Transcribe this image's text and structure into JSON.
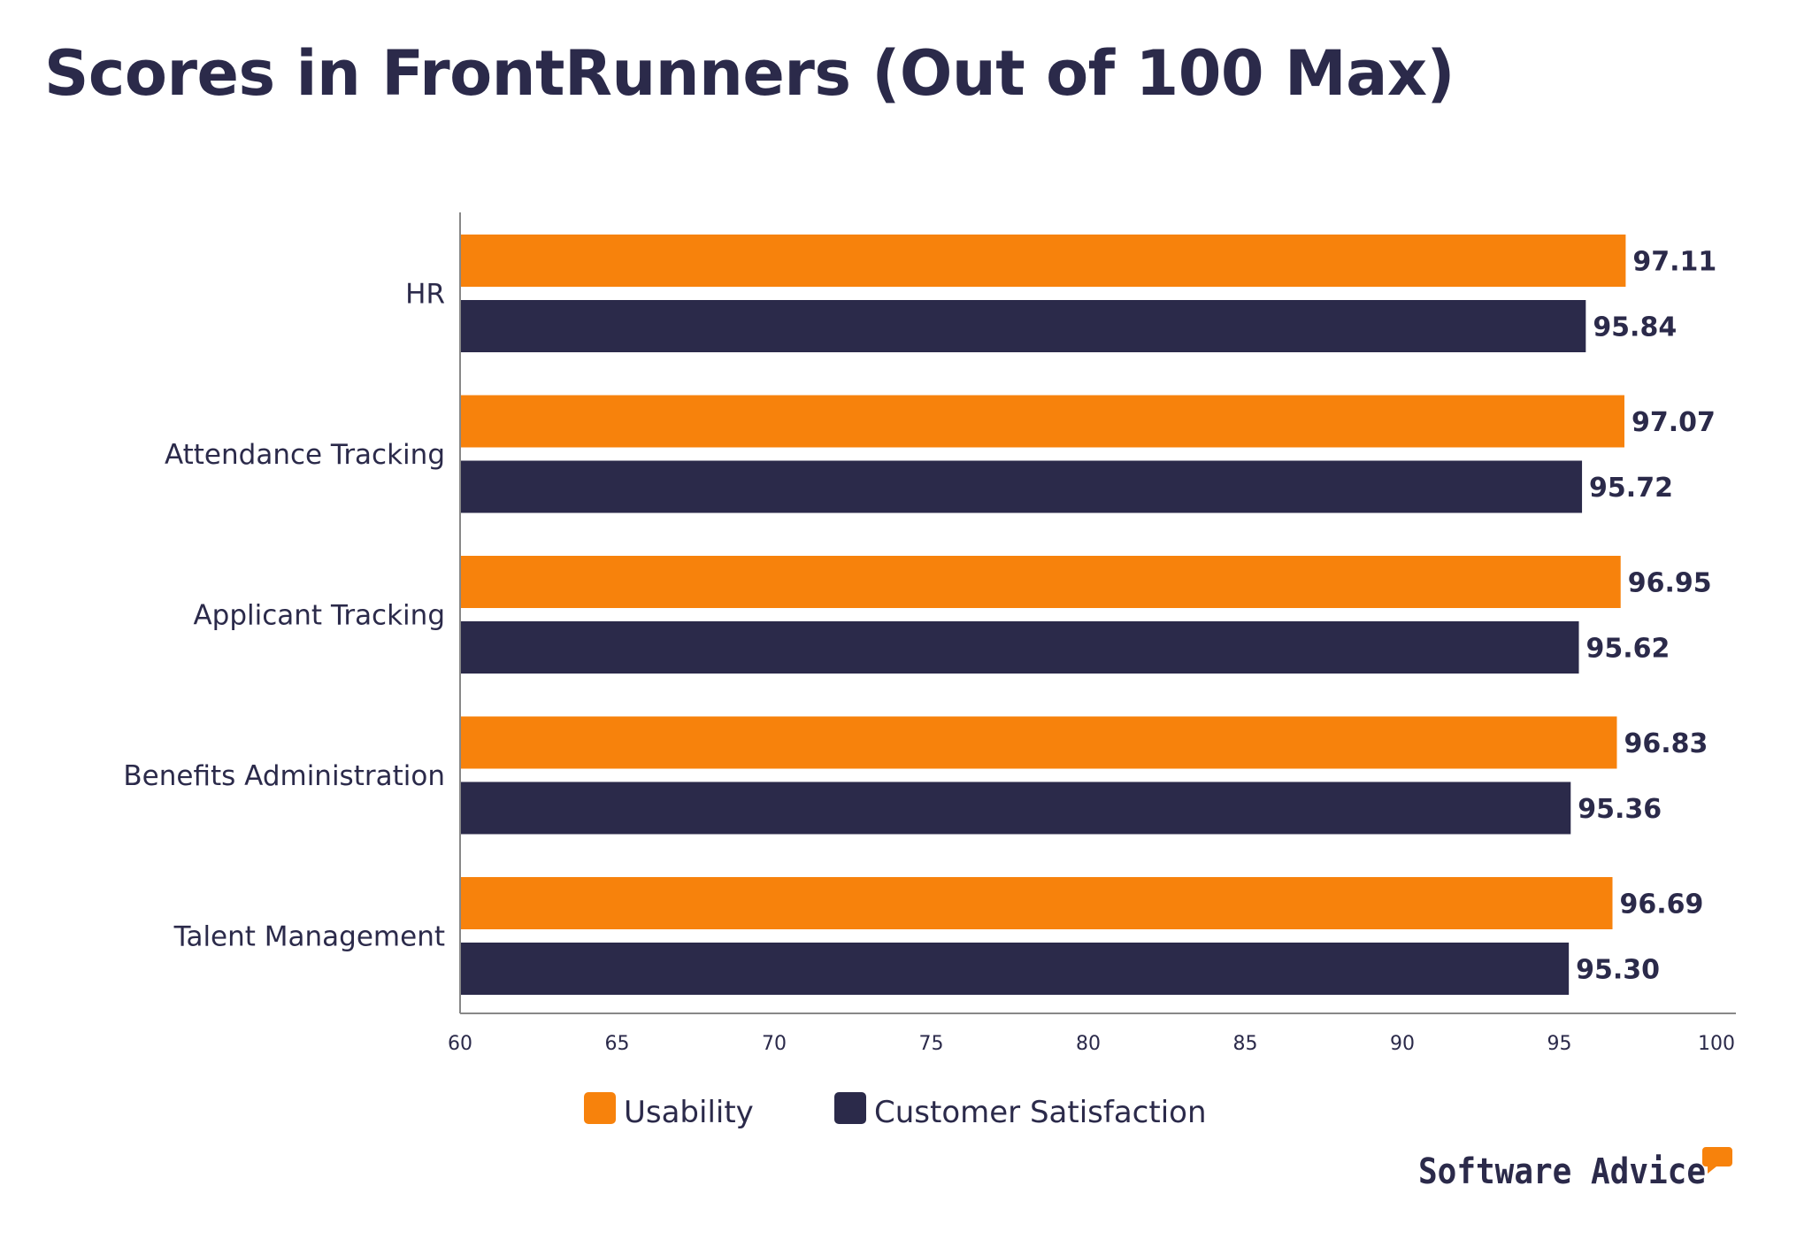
{
  "chart_data": {
    "type": "bar",
    "orientation": "horizontal",
    "title": "Scores in FrontRunners (Out of 100 Max)",
    "categories": [
      "HR",
      "Attendance Tracking",
      "Applicant Tracking",
      "Benefits Administration",
      "Talent Management"
    ],
    "series": [
      {
        "name": "Usability",
        "color": "#f7820c",
        "values": [
          97.11,
          97.07,
          96.95,
          96.83,
          96.69
        ],
        "labels": [
          "97.11",
          "97.07",
          "96.95",
          "96.83",
          "96.69"
        ]
      },
      {
        "name": "Customer Satisfaction",
        "color": "#2b2a4a",
        "values": [
          95.84,
          95.72,
          95.62,
          95.36,
          95.3
        ],
        "labels": [
          "95.84",
          "95.72",
          "95.62",
          "95.36",
          "95.30"
        ]
      }
    ],
    "xlim": [
      60,
      100
    ],
    "xticks": [
      "60",
      "65",
      "70",
      "75",
      "80",
      "85",
      "90",
      "95",
      "100"
    ],
    "xlabel": "",
    "ylabel": "",
    "grid": false,
    "legend": "bottom"
  },
  "branding": {
    "logo_text": "Software Advice",
    "logo_accent": "#f7820c"
  }
}
